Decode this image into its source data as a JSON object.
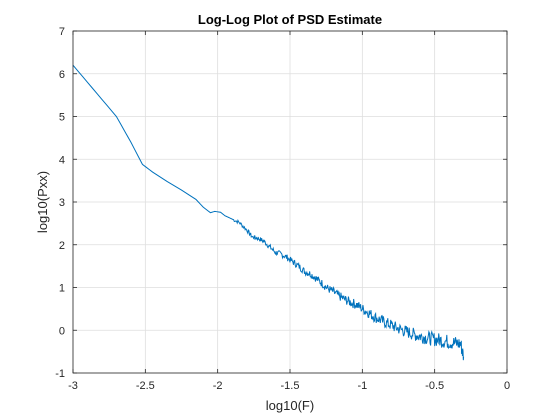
{
  "chart_data": {
    "type": "line",
    "title": "Log-Log Plot of PSD Estimate",
    "xlabel": "log10(F)",
    "ylabel": "log10(Pxx)",
    "xlim": [
      -3,
      0
    ],
    "ylim": [
      -1,
      7
    ],
    "xticks": [
      -3,
      -2.5,
      -2,
      -1.5,
      -1,
      -0.5,
      0
    ],
    "xtick_labels": [
      "-3",
      "-2.5",
      "-2",
      "-1.5",
      "-1",
      "-0.5",
      "0"
    ],
    "yticks": [
      -1,
      0,
      1,
      2,
      3,
      4,
      5,
      6,
      7
    ],
    "ytick_labels": [
      "-1",
      "0",
      "1",
      "2",
      "3",
      "4",
      "5",
      "6",
      "7"
    ],
    "grid": true,
    "line_color": "#0072BD",
    "series": [
      {
        "x": [
          -3.0,
          -2.9,
          -2.8,
          -2.7,
          -2.6,
          -2.52,
          -2.45,
          -2.35,
          -2.25,
          -2.15,
          -2.1,
          -2.05,
          -2.02,
          -1.98,
          -1.95,
          -1.9,
          -1.85,
          -1.8,
          -1.76,
          -1.72,
          -1.68,
          -1.64,
          -1.6,
          -1.56,
          -1.52,
          -1.48,
          -1.44,
          -1.4,
          -1.36,
          -1.32,
          -1.28,
          -1.24,
          -1.2,
          -1.16,
          -1.12,
          -1.08,
          -1.04,
          -1.0,
          -0.96,
          -0.92,
          -0.88,
          -0.84,
          -0.8,
          -0.76,
          -0.72,
          -0.68,
          -0.64,
          -0.6,
          -0.56,
          -0.52,
          -0.48,
          -0.44,
          -0.4,
          -0.36,
          -0.32,
          -0.3
        ],
        "y": [
          6.2,
          5.8,
          5.4,
          5.0,
          4.4,
          3.88,
          3.7,
          3.48,
          3.28,
          3.06,
          2.88,
          2.75,
          2.78,
          2.76,
          2.68,
          2.6,
          2.52,
          2.35,
          2.18,
          2.15,
          2.08,
          1.95,
          1.82,
          1.78,
          1.7,
          1.6,
          1.5,
          1.38,
          1.32,
          1.22,
          1.1,
          0.98,
          0.9,
          0.8,
          0.72,
          0.65,
          0.6,
          0.5,
          0.42,
          0.32,
          0.25,
          0.18,
          0.12,
          0.05,
          0.0,
          -0.05,
          -0.1,
          -0.14,
          -0.17,
          -0.2,
          -0.22,
          -0.25,
          -0.27,
          -0.3,
          -0.32,
          -0.62
        ]
      }
    ]
  }
}
